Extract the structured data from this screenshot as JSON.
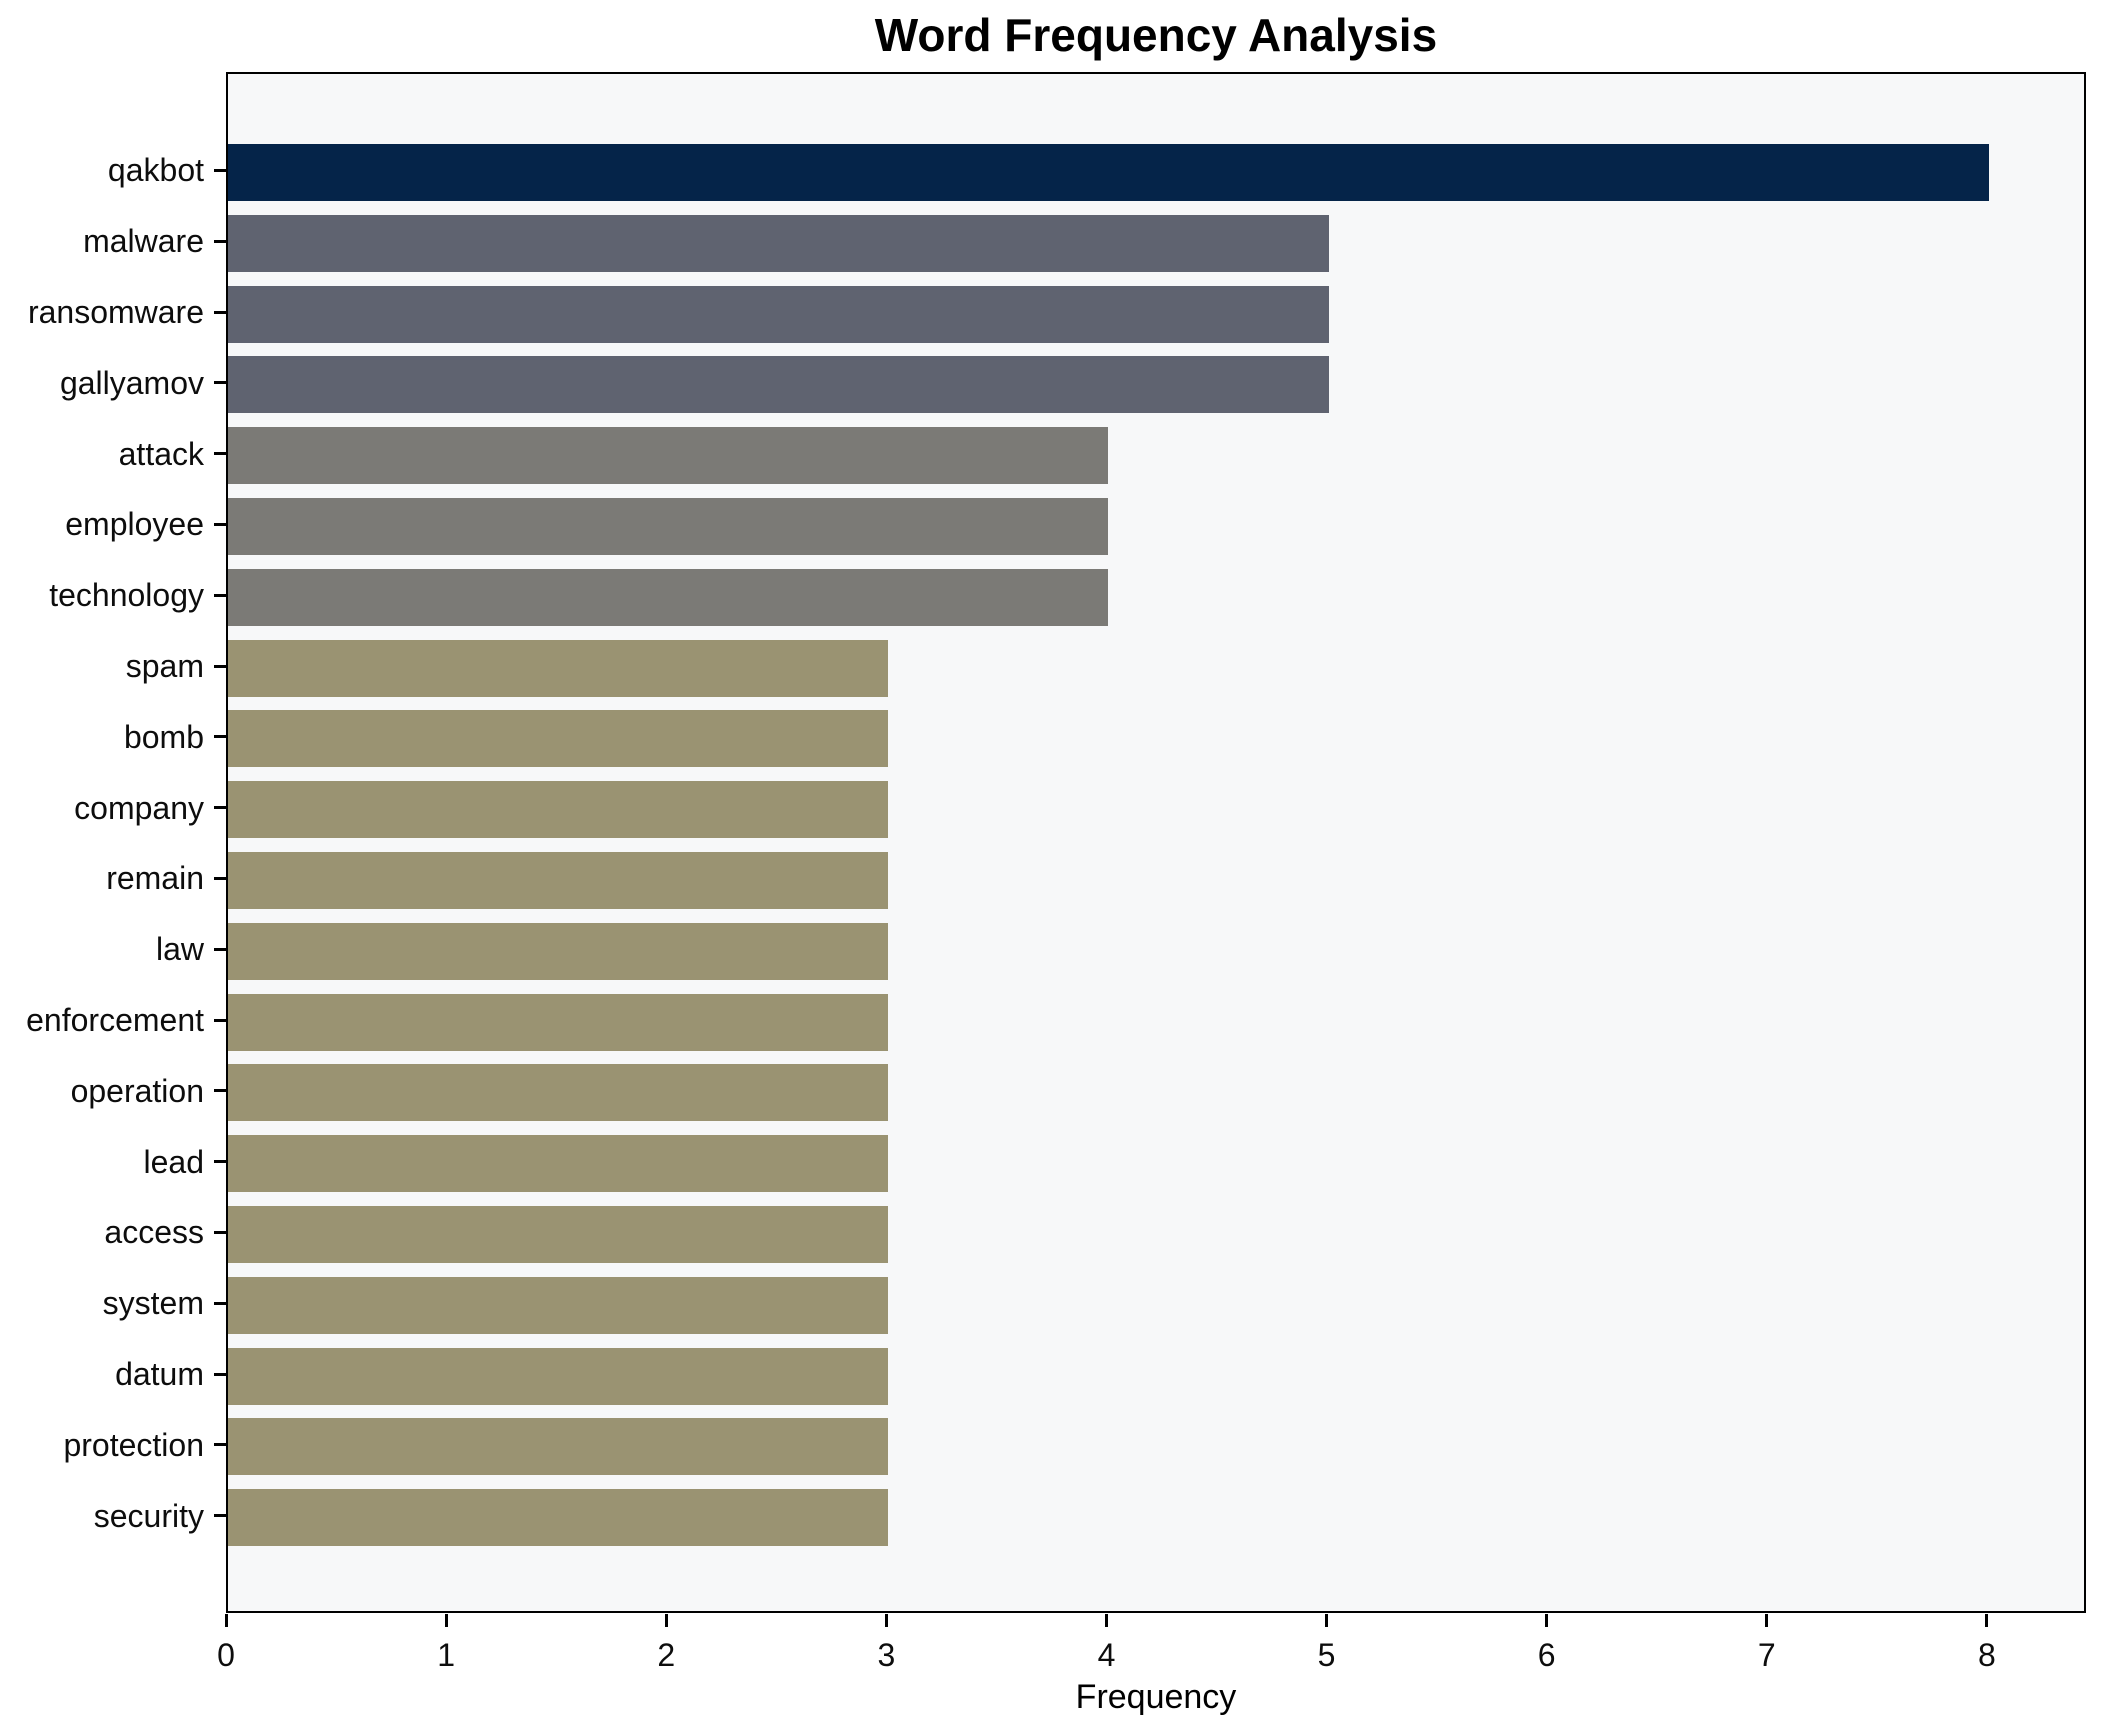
{
  "chart_data": {
    "type": "bar",
    "orientation": "horizontal",
    "title": "Word Frequency Analysis",
    "xlabel": "Frequency",
    "ylabel": "",
    "grid": false,
    "legend": false,
    "xlim": [
      0,
      8.45
    ],
    "xticks": [
      0,
      1,
      2,
      3,
      4,
      5,
      6,
      7,
      8
    ],
    "categories": [
      "qakbot",
      "malware",
      "ransomware",
      "gallyamov",
      "attack",
      "employee",
      "technology",
      "spam",
      "bomb",
      "company",
      "remain",
      "law",
      "enforcement",
      "operation",
      "lead",
      "access",
      "system",
      "datum",
      "protection",
      "security"
    ],
    "values": [
      8,
      5,
      5,
      5,
      4,
      4,
      4,
      3,
      3,
      3,
      3,
      3,
      3,
      3,
      3,
      3,
      3,
      3,
      3,
      3
    ],
    "bar_colors": [
      "#052449",
      "#5f6370",
      "#5f6370",
      "#5f6370",
      "#7b7a76",
      "#7b7a76",
      "#7b7a76",
      "#9a9372",
      "#9a9372",
      "#9a9372",
      "#9a9372",
      "#9a9372",
      "#9a9372",
      "#9a9372",
      "#9a9372",
      "#9a9372",
      "#9a9372",
      "#9a9372",
      "#9a9372",
      "#9a9372"
    ],
    "color_legend": {
      "frequency_8": "#052449",
      "frequency_5": "#5f6370",
      "frequency_4": "#7b7a76",
      "frequency_3": "#9a9372"
    },
    "plot_background": "#f7f8f9",
    "figure_background": "#ffffff",
    "spine_color": "#000000"
  }
}
